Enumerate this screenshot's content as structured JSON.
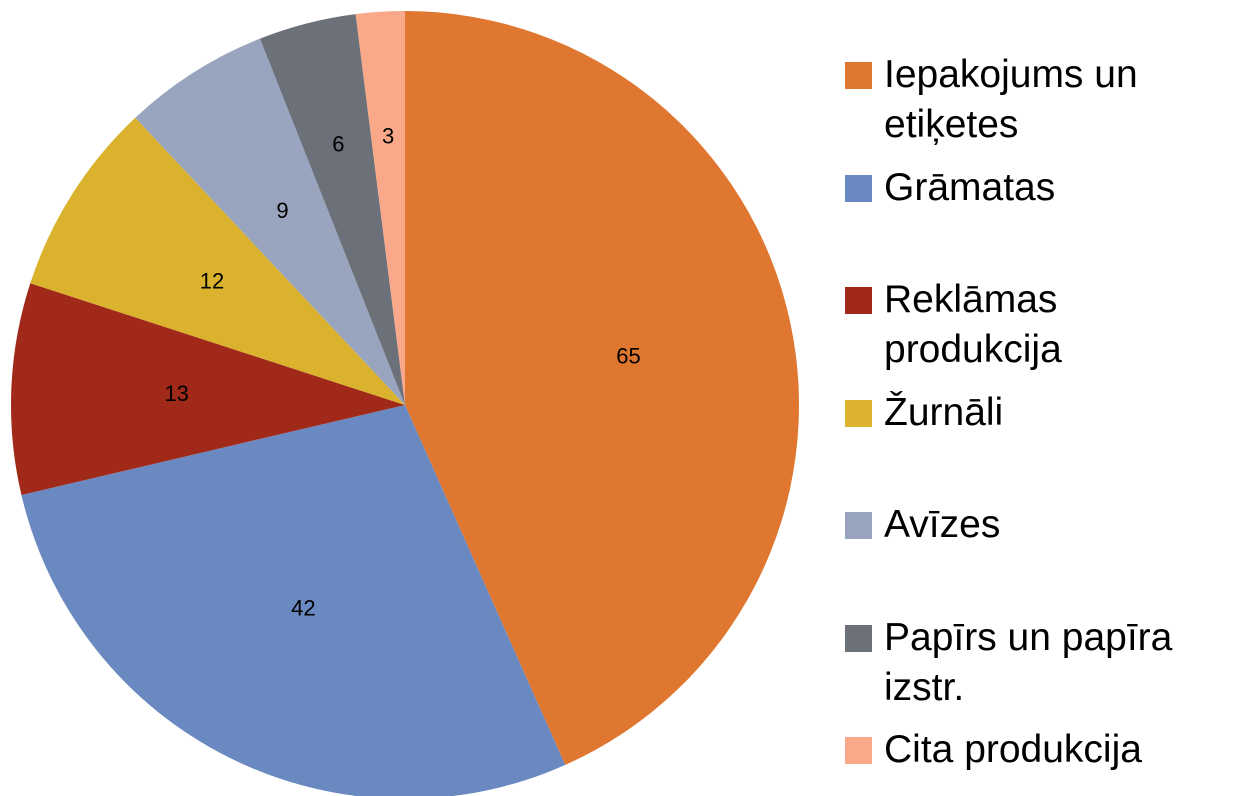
{
  "chart_data": {
    "type": "pie",
    "categories": [
      "Iepakojums un etiķetes",
      "Grāmatas",
      "Reklāmas produkcija",
      "Žurnāli",
      "Avīzes",
      "Papīrs un papīra izstr.",
      "Cita produkcija"
    ],
    "values": [
      65,
      42,
      13,
      12,
      9,
      6,
      3
    ],
    "colors": [
      "#e07730",
      "#6a89c1",
      "#a0291a",
      "#dbb22e",
      "#99a4bf",
      "#6b7079",
      "#f9a98a"
    ],
    "legend": "right"
  }
}
